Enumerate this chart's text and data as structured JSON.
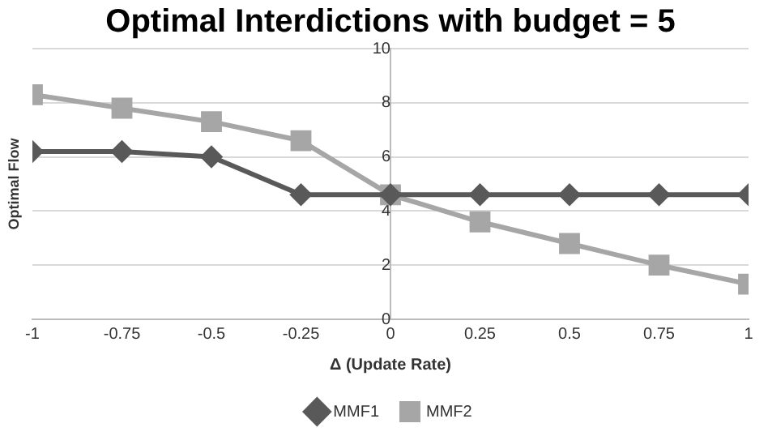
{
  "chart_data": {
    "type": "line",
    "title": "Optimal Interdictions with budget = 5",
    "xlabel": "Δ (Update Rate)",
    "ylabel": "Optimal Flow",
    "x": [
      -1,
      -0.75,
      -0.5,
      -0.25,
      0,
      0.25,
      0.5,
      0.75,
      1
    ],
    "xlim": [
      -1,
      1
    ],
    "xticks": [
      -1,
      -0.75,
      -0.5,
      -0.25,
      0,
      0.25,
      0.5,
      0.75,
      1
    ],
    "ylim": [
      0,
      10
    ],
    "yticks": [
      0,
      2,
      4,
      6,
      8,
      10
    ],
    "grid": "y",
    "legend": "bottom",
    "series": [
      {
        "name": "MMF1",
        "color": "#595959",
        "marker": "diamond",
        "values": [
          6.2,
          6.2,
          6.0,
          4.6,
          4.6,
          4.6,
          4.6,
          4.6,
          4.6
        ]
      },
      {
        "name": "MMF2",
        "color": "#a6a6a6",
        "marker": "square",
        "values": [
          8.3,
          7.8,
          7.3,
          6.6,
          4.6,
          3.6,
          2.8,
          2.0,
          1.3
        ]
      }
    ]
  }
}
